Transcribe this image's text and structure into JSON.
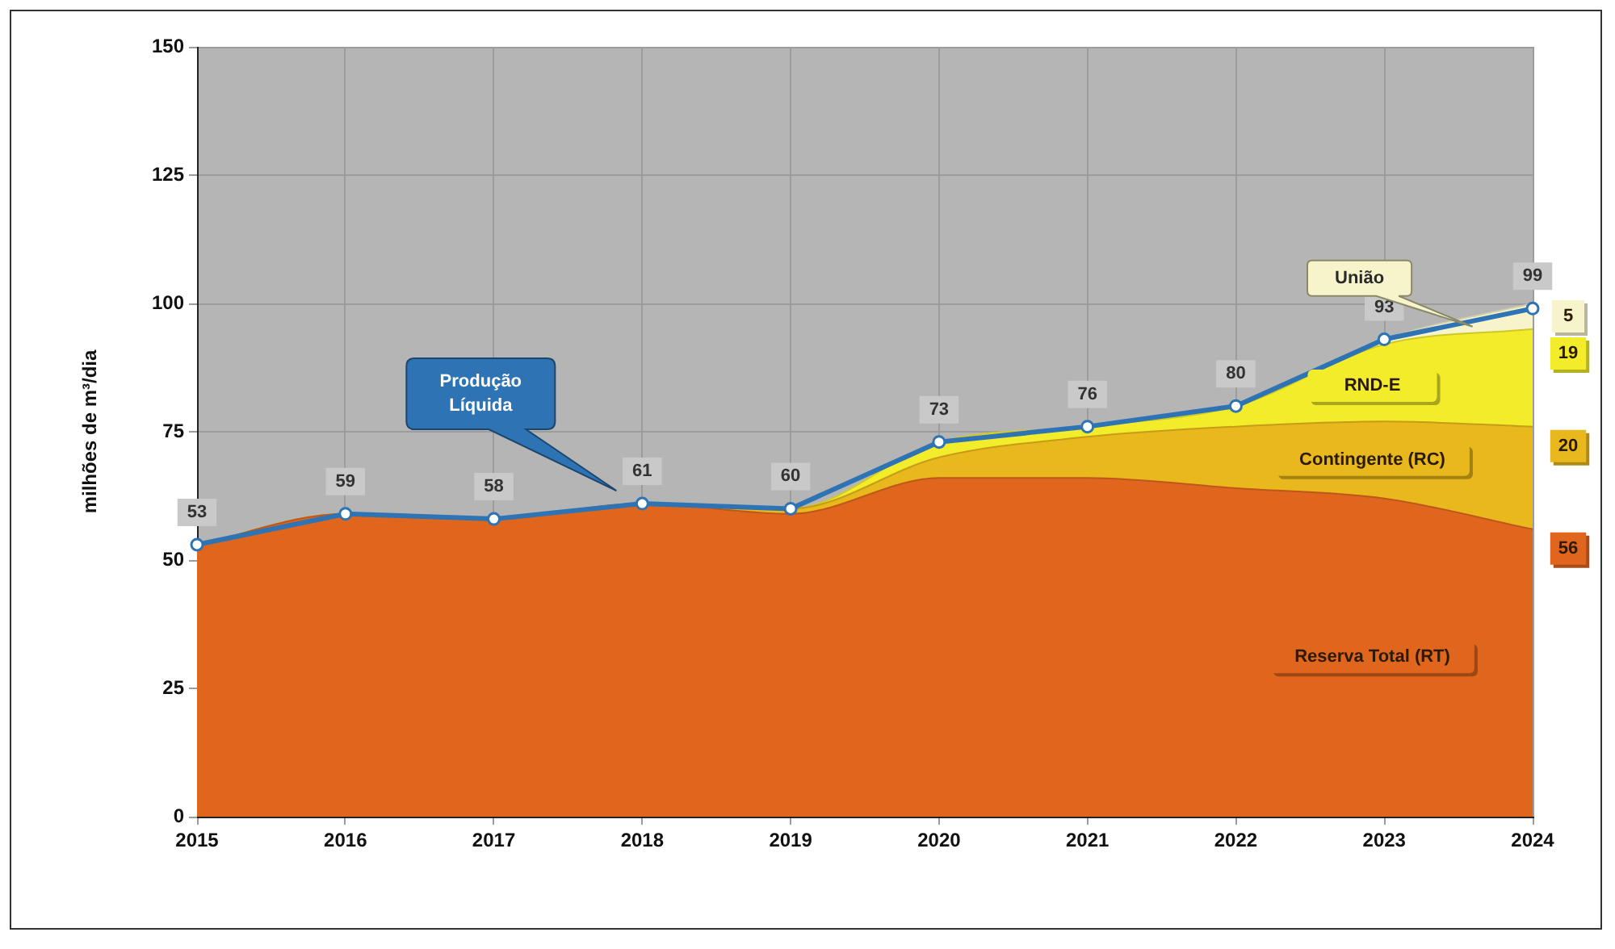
{
  "chart_data": {
    "type": "area",
    "stacked": true,
    "ylabel": "milhões de m³/dia",
    "categories": [
      "2015",
      "2016",
      "2017",
      "2018",
      "2019",
      "2020",
      "2021",
      "2022",
      "2023",
      "2024"
    ],
    "ylim": [
      0,
      150
    ],
    "yticks": [
      0,
      25,
      50,
      75,
      100,
      125,
      150
    ],
    "grid": true,
    "legend": false,
    "series": [
      {
        "name": "Reserva Total (RT)",
        "color": "#e0661e",
        "values": [
          53,
          59,
          58,
          61,
          59,
          66,
          66,
          64,
          62,
          56
        ],
        "value_labels": [
          null,
          null,
          null,
          null,
          null,
          null,
          null,
          null,
          null,
          "56"
        ]
      },
      {
        "name": "Contingente (RC)",
        "color": "#e9b81c",
        "values": [
          0,
          0,
          0,
          0,
          1,
          4,
          8,
          12,
          15,
          20
        ],
        "value_labels": [
          null,
          null,
          null,
          null,
          null,
          null,
          null,
          null,
          null,
          "20"
        ]
      },
      {
        "name": "RND-E",
        "color": "#f2ec2a",
        "values": [
          0,
          0,
          0,
          0,
          0,
          3,
          2,
          4,
          15,
          19
        ],
        "value_labels": [
          null,
          null,
          null,
          null,
          null,
          null,
          null,
          null,
          null,
          "19"
        ]
      },
      {
        "name": "União",
        "color": "#f7f4cc",
        "values": [
          0,
          0,
          0,
          0,
          0,
          0,
          0,
          0,
          1,
          5
        ],
        "value_labels": [
          null,
          null,
          null,
          null,
          null,
          null,
          null,
          null,
          null,
          "5"
        ]
      },
      {
        "name": "Produção Líquida",
        "type": "line",
        "color": "#2e74b5",
        "marker": "circle",
        "values": [
          53,
          59,
          58,
          61,
          60,
          73,
          76,
          80,
          93,
          99
        ],
        "value_labels": [
          "53",
          "59",
          "58",
          "61",
          "60",
          "73",
          "76",
          "80",
          "93",
          "99"
        ]
      }
    ]
  }
}
